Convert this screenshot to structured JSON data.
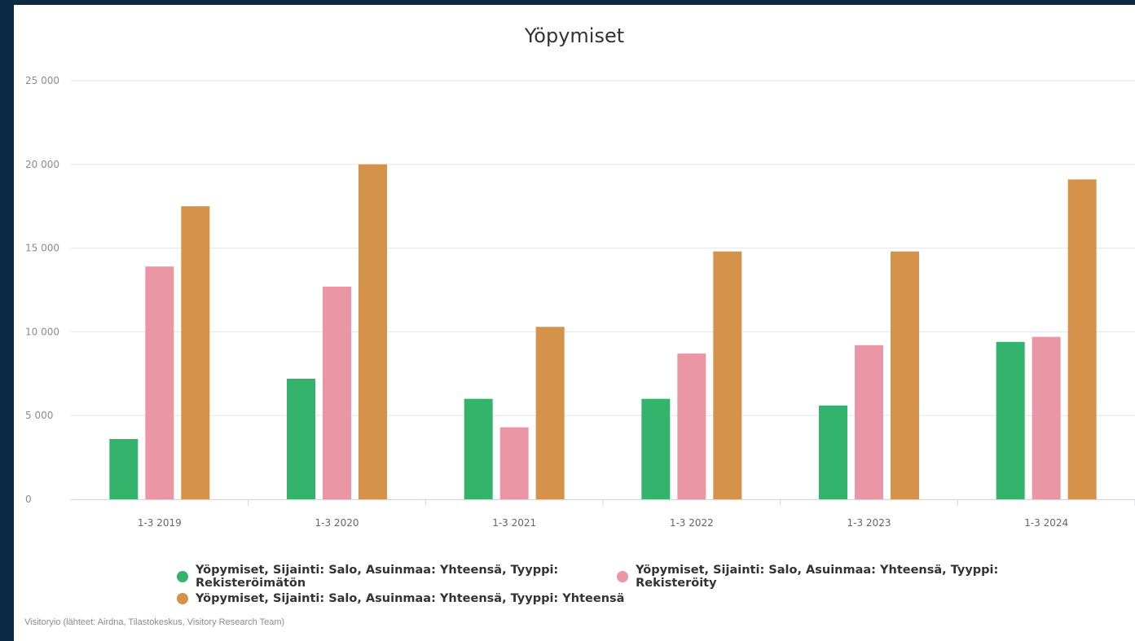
{
  "chart_data": {
    "type": "bar",
    "title": "Yöpymiset",
    "categories": [
      "1-3 2019",
      "1-3 2020",
      "1-3 2021",
      "1-3 2022",
      "1-3 2023",
      "1-3 2024"
    ],
    "series": [
      {
        "name": "Yöpymiset, Sijainti: Salo, Asuinmaa: Yhteensä, Tyyppi: Rekisteröimätön",
        "color": "#33b36b",
        "values": [
          3600,
          7200,
          6000,
          6000,
          5600,
          9400
        ]
      },
      {
        "name": "Yöpymiset, Sijainti: Salo, Asuinmaa: Yhteensä, Tyyppi: Rekisteröity",
        "color": "#ea96a4",
        "values": [
          13900,
          12700,
          4300,
          8700,
          9200,
          9700
        ]
      },
      {
        "name": "Yöpymiset, Sijainti: Salo, Asuinmaa: Yhteensä, Tyyppi: Yhteensä",
        "color": "#d4924a",
        "values": [
          17500,
          20000,
          10300,
          14800,
          14800,
          19100
        ]
      }
    ],
    "ylim": [
      0,
      25000
    ],
    "yticks": [
      0,
      5000,
      10000,
      15000,
      20000,
      25000
    ],
    "ytick_labels": [
      "0",
      "5 000",
      "10 000",
      "15 000",
      "20 000",
      "25 000"
    ],
    "grid": true,
    "legend_position": "bottom-center"
  },
  "credits": "Visitoryio (lähteet: Airdna, Tilastokeskus, Visitory Research Team)"
}
